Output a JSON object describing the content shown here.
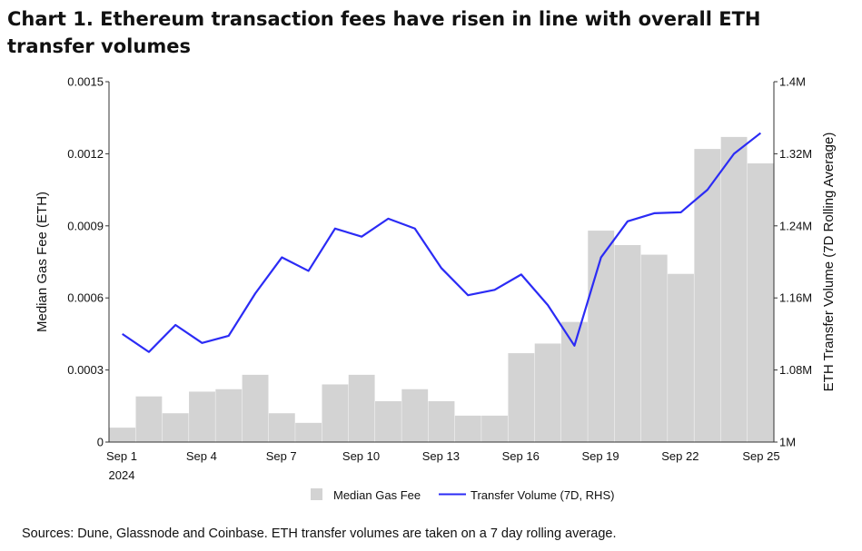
{
  "chart_data": {
    "type": "bar",
    "title": "Chart 1. Ethereum transaction fees have risen in line with overall ETH transfer volumes",
    "source": "Sources: Dune, Glassnode and Coinbase. ETH transfer volumes are taken on a 7 day rolling average.",
    "x": [
      "Sep 1",
      "Sep 2",
      "Sep 3",
      "Sep 4",
      "Sep 5",
      "Sep 6",
      "Sep 7",
      "Sep 8",
      "Sep 9",
      "Sep 10",
      "Sep 11",
      "Sep 12",
      "Sep 13",
      "Sep 14",
      "Sep 15",
      "Sep 16",
      "Sep 17",
      "Sep 18",
      "Sep 19",
      "Sep 20",
      "Sep 21",
      "Sep 22",
      "Sep 23",
      "Sep 24",
      "Sep 25"
    ],
    "x_ticks": [
      "Sep 1",
      "Sep 4",
      "Sep 7",
      "Sep 10",
      "Sep 13",
      "Sep 16",
      "Sep 19",
      "Sep 22",
      "Sep 25"
    ],
    "x_year_label": "2024",
    "series": [
      {
        "name": "Median Gas Fee",
        "type": "bar",
        "axis": "left",
        "color": "#d3d3d3",
        "values": [
          6e-05,
          0.00019,
          0.00012,
          0.00021,
          0.00022,
          0.00028,
          0.00012,
          8e-05,
          0.00024,
          0.00028,
          0.00017,
          0.00022,
          0.00017,
          0.00011,
          0.00011,
          0.00037,
          0.00041,
          0.0005,
          0.00088,
          0.00082,
          0.00078,
          0.0007,
          0.00122,
          0.00127,
          0.00116
        ]
      },
      {
        "name": "Transfer Volume (7D, RHS)",
        "type": "line",
        "axis": "right",
        "color": "#2b2bf5",
        "values": [
          1120000,
          1100000,
          1130000,
          1110000,
          1118000,
          1165000,
          1205000,
          1190000,
          1237000,
          1228000,
          1248000,
          1237000,
          1193000,
          1163000,
          1169000,
          1186000,
          1152000,
          1107000,
          1205000,
          1245000,
          1254000,
          1255000,
          1280000,
          1320000,
          1343000
        ]
      }
    ],
    "ylabel": "Median Gas Fee (ETH)",
    "ylim": [
      0,
      0.0015
    ],
    "yticks": [
      "0",
      "0.0003",
      "0.0006",
      "0.0009",
      "0.0012",
      "0.0015"
    ],
    "ylabel_right": "ETH Transfer Volume (7D Rolling Average)",
    "ylim_right": [
      1000000,
      1400000
    ],
    "yticks_right": [
      "1M",
      "1.08M",
      "1.16M",
      "1.24M",
      "1.32M",
      "1.4M"
    ],
    "legend_position": "bottom-center",
    "grid": false
  }
}
